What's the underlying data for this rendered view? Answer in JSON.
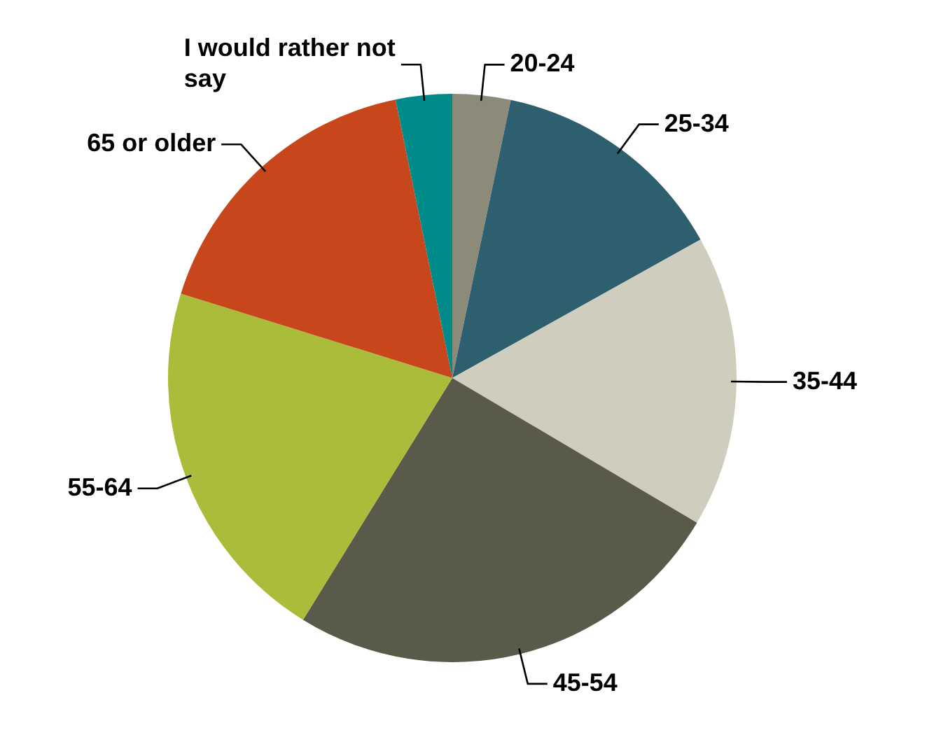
{
  "chart_data": {
    "type": "pie",
    "categories": [
      "20-24",
      "25-34",
      "35-44",
      "45-54",
      "55-64",
      "65 or older",
      "I would rather not say"
    ],
    "values": [
      3.3,
      13.6,
      16.6,
      25.3,
      21,
      17,
      3.2
    ],
    "colors": [
      "#8c8b7a",
      "#2e5f6e",
      "#cfcdbd",
      "#5a5a4a",
      "#abbb3a",
      "#c8461c",
      "#008b8b"
    ],
    "legend": false
  }
}
